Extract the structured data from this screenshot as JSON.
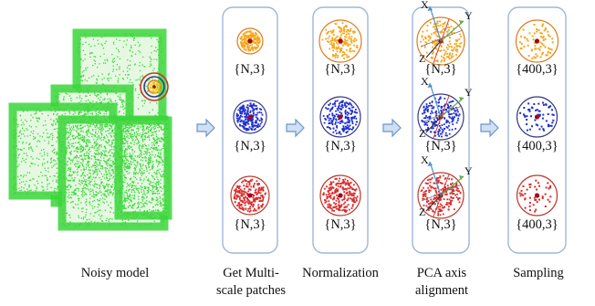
{
  "stages": [
    {
      "id": "noisy",
      "caption": [
        "Noisy model"
      ]
    },
    {
      "id": "multiscale",
      "caption": [
        "Get Multi-",
        "scale patches"
      ],
      "shapes": [
        "{N,3}",
        "{N,3}",
        "{N,3}"
      ]
    },
    {
      "id": "normalization",
      "caption": [
        "Normalization"
      ],
      "shapes": [
        "{N,3}",
        "{N,3}",
        "{N,3}"
      ]
    },
    {
      "id": "pca",
      "caption": [
        "PCA axis",
        "alignment"
      ],
      "shapes": [
        "{N,3}",
        "{N,3}",
        "{N,3}"
      ],
      "axes": [
        "X",
        "Y",
        "Z"
      ]
    },
    {
      "id": "sampling",
      "caption": [
        "Sampling"
      ],
      "shapes": [
        "{400,3}",
        "{400,3}",
        "{400,3}"
      ]
    }
  ],
  "scale_colors": [
    "#f5a61b",
    "#1f2fd0",
    "#d92b2b"
  ],
  "ring_colors": [
    "#e07a1a",
    "#3a3a8a",
    "#c0392b"
  ],
  "model_color": "#3ad63a",
  "panel_border": "#9fb7d8",
  "arrow_fill": "#cfe0f5",
  "arrow_stroke": "#6e93c8"
}
